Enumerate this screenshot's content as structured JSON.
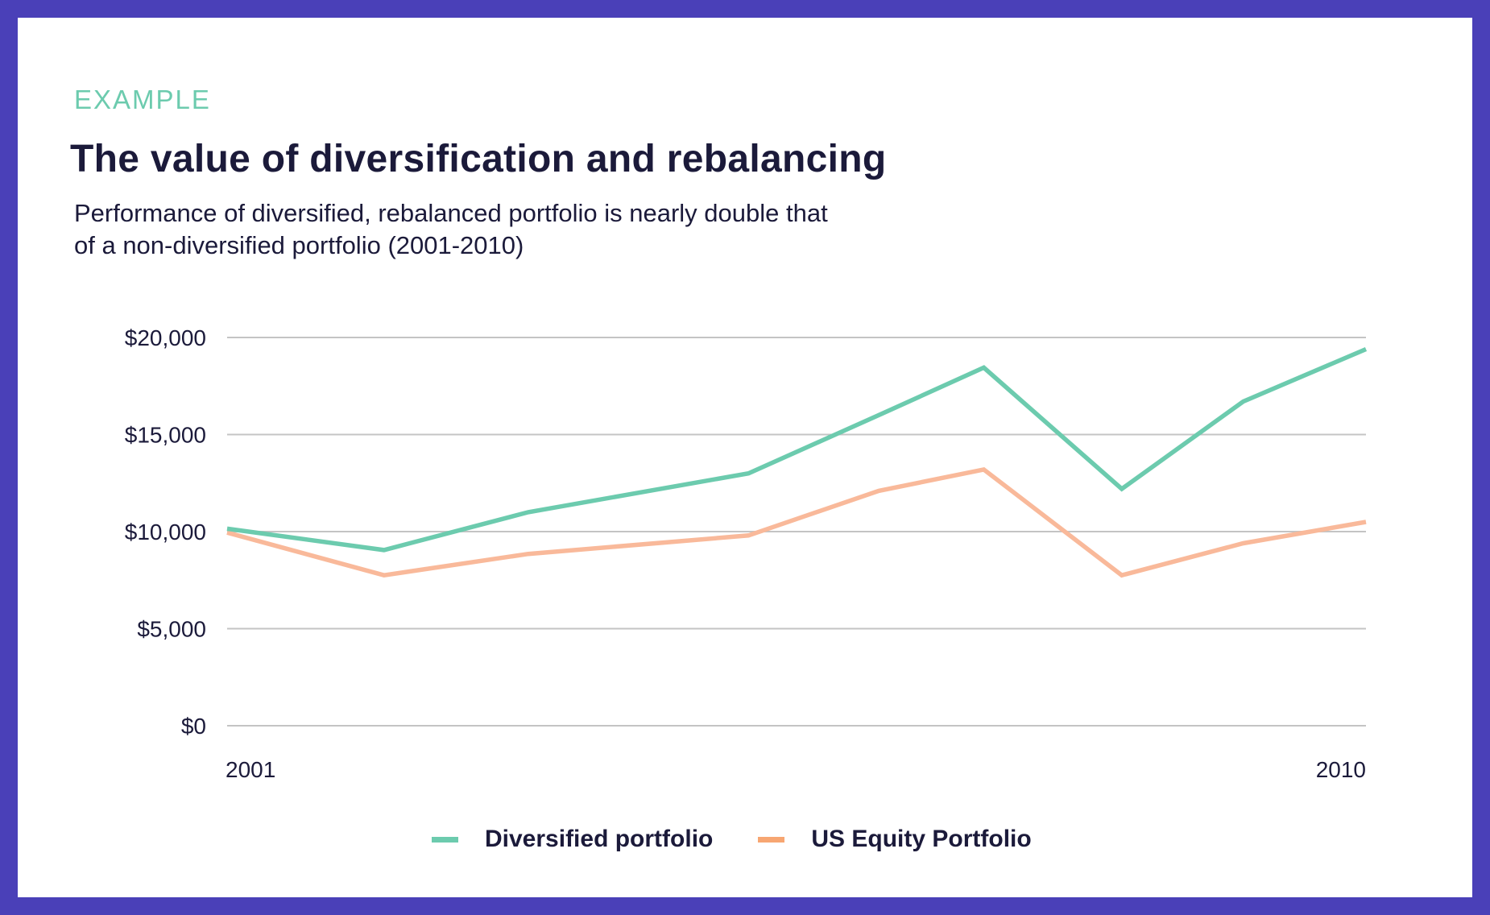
{
  "header": {
    "eyebrow": "EXAMPLE",
    "title": "The value of diversification and rebalancing",
    "subtitle_lines": [
      "Performance of diversified, rebalanced portfolio is nearly double that",
      "of a non-diversified portfolio (2001-2010)"
    ]
  },
  "colors": {
    "frame": "#4A40B8",
    "accent": "#6CCBAE",
    "diversified_line": "#6CCBAE",
    "equity_line": "#F9B99A",
    "equity_legend": "#F7A672",
    "gridline": "#C4C4C4",
    "text": "#1B1A3A"
  },
  "chart_data": {
    "type": "line",
    "title": "The value of diversification and rebalancing",
    "subtitle": "Performance of diversified, rebalanced portfolio is nearly double that of a non-diversified portfolio (2001-2010)",
    "xlabel": "",
    "ylabel": "",
    "xlim": [
      2001,
      2010
    ],
    "ylim": [
      0,
      20000
    ],
    "x_ticks": [
      2001,
      2010
    ],
    "x_tick_labels": [
      "2001",
      "2010"
    ],
    "y_ticks": [
      0,
      5000,
      10000,
      15000,
      20000
    ],
    "y_tick_labels": [
      "$0",
      "$5,000",
      "$10,000",
      "$15,000",
      "$20,000"
    ],
    "grid": "horizontal",
    "legend_position": "bottom-center",
    "x": [
      2001.0,
      2002.24,
      2003.38,
      2005.12,
      2006.15,
      2006.98,
      2008.07,
      2009.03,
      2010.0
    ],
    "series": [
      {
        "name": "Diversified portfolio",
        "color": "#6CCBAE",
        "values": [
          10150,
          9050,
          11000,
          13000,
          16000,
          18450,
          12200,
          16700,
          19400
        ]
      },
      {
        "name": "US Equity Portfolio",
        "color": "#F9B99A",
        "legend_color": "#F7A672",
        "values": [
          9950,
          7750,
          8850,
          9800,
          12100,
          13200,
          7750,
          9400,
          10500
        ]
      }
    ]
  }
}
